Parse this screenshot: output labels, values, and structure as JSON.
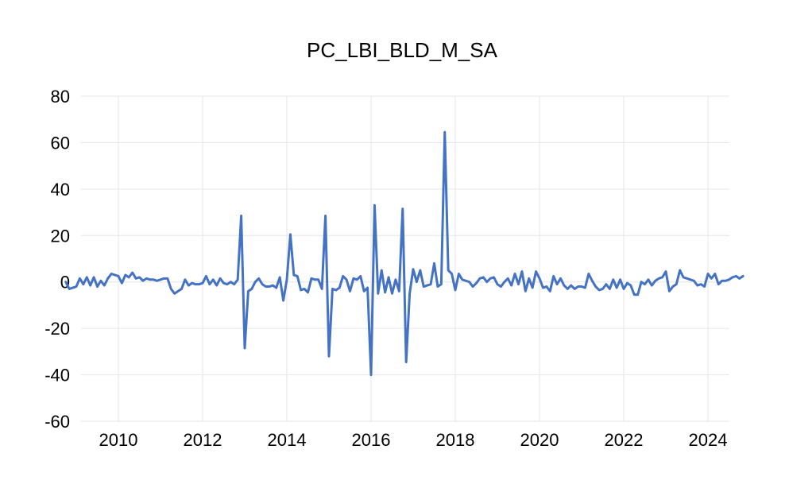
{
  "chart_data": {
    "type": "line",
    "title": "PC_LBI_BLD_M_SA",
    "xlabel": "",
    "ylabel": "",
    "ylim": [
      -60,
      80
    ],
    "yticks": [
      -60,
      -40,
      -20,
      0,
      20,
      40,
      60,
      80
    ],
    "xticks": [
      "2010",
      "2012",
      "2014",
      "2016",
      "2018",
      "2020",
      "2022",
      "2024"
    ],
    "grid": true,
    "legend": "none",
    "colors": {
      "line": "#4472C4",
      "grid": "#e6e6e6",
      "text": "#000000"
    },
    "x_start": "2008-10",
    "x_frequency": "monthly",
    "series": [
      {
        "values": [
          0,
          -3,
          -2.5,
          -2,
          1.5,
          -1,
          2,
          -1.5,
          2,
          -2,
          0.5,
          -1.5,
          1.5,
          3.5,
          3,
          2.5,
          -0.5,
          3,
          2,
          4,
          1.5,
          2,
          0.5,
          1.5,
          1,
          1,
          0.5,
          1,
          1.5,
          1.5,
          -3,
          -5,
          -4,
          -3,
          1,
          -1.5,
          -0.5,
          -1,
          -1,
          -0.5,
          2.5,
          -1,
          1,
          -1.5,
          1.5,
          -0.5,
          -1,
          0,
          -1,
          1,
          28.5,
          -28.5,
          -4,
          -3,
          0,
          1.5,
          -1,
          -2,
          -2,
          -1.5,
          -2.5,
          2,
          -8,
          1,
          20.5,
          3,
          2.5,
          -3.5,
          -3,
          -4.5,
          1.5,
          1,
          1,
          -3,
          28.5,
          -32,
          -3,
          -3.5,
          -2.5,
          2.5,
          1,
          -4,
          1.5,
          1,
          2.5,
          -4,
          -2.5,
          -40,
          33,
          -5,
          5,
          -4.5,
          2,
          -5,
          1,
          -4,
          31.5,
          -34.5,
          -5,
          5.5,
          0,
          5,
          -2,
          -1.5,
          -1,
          8,
          -2,
          -1,
          64.5,
          5,
          3.5,
          -3.5,
          3.5,
          1,
          0.5,
          0,
          -2,
          -0.5,
          1.5,
          2,
          0,
          1.5,
          2,
          -1,
          -2,
          0,
          1.5,
          -1.5,
          3.5,
          -1,
          4.5,
          -4,
          1.5,
          -2.5,
          4.5,
          1.5,
          -2.5,
          -2,
          -4,
          2.5,
          -1,
          1.5,
          -1.5,
          -3,
          -1.5,
          -3,
          -2,
          -2,
          -2.5,
          3.5,
          0.5,
          -2,
          -3.5,
          -3,
          -1,
          -3,
          1,
          -2.5,
          1,
          -3,
          -0.5,
          -1.5,
          -5.5,
          -5.5,
          0,
          -1,
          1,
          -1.5,
          0.5,
          1.5,
          2,
          4.5,
          -4,
          -2,
          -1,
          5,
          2,
          1.5,
          1,
          0.5,
          -1.5,
          -1,
          -2,
          3.5,
          1.5,
          3.5,
          -1,
          0.5,
          0.5,
          1,
          2,
          2.5,
          1.5,
          2.5
        ]
      }
    ]
  }
}
